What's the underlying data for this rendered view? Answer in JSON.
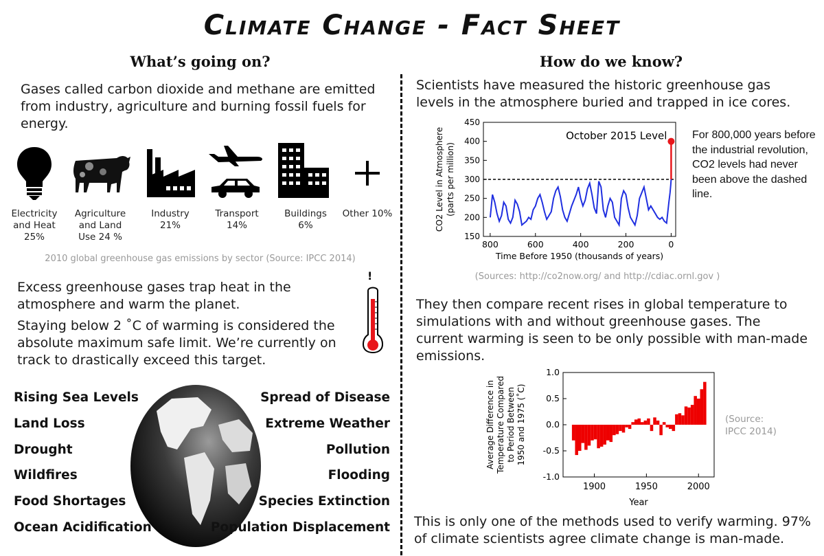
{
  "title": "Climate Change - Fact Sheet",
  "left": {
    "heading": "What’s going on?",
    "intro": "Gases called carbon dioxide and methane are emitted from industry, agriculture and burning fossil fuels for energy.",
    "sectors": [
      {
        "icon": "lightbulb-icon",
        "line1": "Electricity",
        "line2": "and Heat",
        "line3": "25%"
      },
      {
        "icon": "cow-icon",
        "line1": "Agriculture",
        "line2": "and Land",
        "line3": "Use 24 %"
      },
      {
        "icon": "factory-icon",
        "line1": "Industry",
        "line2": "21%",
        "line3": ""
      },
      {
        "icon": "plane-car-icon",
        "line1": "Transport",
        "line2": "14%",
        "line3": ""
      },
      {
        "icon": "buildings-icon",
        "line1": "Buildings",
        "line2": "6%",
        "line3": ""
      },
      {
        "icon": "plus-icon",
        "line1": "Other 10%",
        "line2": "",
        "line3": ""
      }
    ],
    "sectors_caption": "2010 global greenhouse gas emissions by sector (Source: IPCC 2014)",
    "para1": "Excess greenhouse gases trap heat in the atmosphere and warm the planet.",
    "para2": "Staying below 2 ˚C of warming is considered the absolute maximum safe limit. We’re currently on track to drastically exceed this target.",
    "thermometer_mark": "!",
    "impacts_left": [
      "Rising Sea Levels",
      "Land Loss",
      "Drought",
      "Wildfires",
      "Food Shortages",
      "Ocean Acidification"
    ],
    "impacts_right": [
      "Spread of Disease",
      "Extreme Weather",
      "Pollution",
      "Flooding",
      "Species Extinction",
      "Population Displacement"
    ]
  },
  "right": {
    "heading": "How do we know?",
    "intro": "Scientists have measured the historic greenhouse gas levels in the atmosphere buried and trapped in ice cores.",
    "co2_note": "For 800,000 years before the industrial revolution, CO2 levels had never been above the dashed line.",
    "co2_sources": "(Sources: http://co2now.org/ and http://cdiac.ornl.gov )",
    "para2": "They then compare recent rises in global temperature to simulations with and without greenhouse gases. The current warming is seen to be only possible with man-made emissions.",
    "temp_source": "(Source: IPCC 2014)",
    "closing": "This is only one of the methods used to verify warming. 97% of climate scientists agree climate change is man-made."
  },
  "colors": {
    "co2_line": "#1f2fe0",
    "co2_marker": "#e8161b",
    "temp_bars": "#ee0000"
  },
  "chart_data": [
    {
      "type": "line",
      "title": "",
      "annotation": "October 2015 Level",
      "xlabel": "Time Before 1950 (thousands of years)",
      "ylabel_line1": "CO2 Level in Atmosphere",
      "ylabel_line2": "(parts per million)",
      "xlim": [
        830,
        -20
      ],
      "ylim": [
        150,
        450
      ],
      "xticks": [
        800,
        600,
        400,
        200,
        0
      ],
      "yticks": [
        150,
        200,
        250,
        300,
        350,
        400,
        450
      ],
      "threshold": 300,
      "current_level": 400,
      "series": [
        {
          "x": [
            800,
            790,
            780,
            770,
            760,
            750,
            740,
            730,
            720,
            710,
            700,
            690,
            680,
            670,
            660,
            650,
            640,
            630,
            620,
            610,
            600,
            590,
            580,
            570,
            560,
            550,
            540,
            530,
            520,
            510,
            500,
            490,
            480,
            470,
            460,
            450,
            440,
            430,
            420,
            410,
            400,
            390,
            380,
            370,
            360,
            350,
            340,
            330,
            320,
            310,
            300,
            290,
            280,
            270,
            260,
            250,
            240,
            230,
            220,
            210,
            200,
            190,
            180,
            170,
            160,
            150,
            140,
            130,
            120,
            110,
            100,
            90,
            80,
            70,
            60,
            50,
            40,
            30,
            20,
            10,
            5,
            2,
            0
          ],
          "y": [
            200,
            260,
            240,
            210,
            190,
            205,
            240,
            230,
            195,
            185,
            200,
            245,
            235,
            215,
            180,
            185,
            190,
            200,
            195,
            220,
            230,
            250,
            260,
            240,
            215,
            195,
            205,
            215,
            250,
            270,
            280,
            255,
            220,
            200,
            190,
            210,
            230,
            245,
            260,
            280,
            250,
            230,
            245,
            275,
            290,
            260,
            225,
            210,
            295,
            280,
            220,
            200,
            230,
            250,
            240,
            200,
            190,
            180,
            250,
            270,
            260,
            225,
            200,
            190,
            180,
            205,
            250,
            265,
            280,
            250,
            220,
            230,
            220,
            210,
            200,
            195,
            200,
            190,
            185,
            240,
            265,
            285,
            300
          ]
        }
      ]
    },
    {
      "type": "bar",
      "title": "",
      "xlabel": "Year",
      "ylabel_line1": "Average Difference in",
      "ylabel_line2": "Temperature Compared",
      "ylabel_line3": "to Period Between",
      "ylabel_line4": "1950 and 1975 (˚C)",
      "xlim": [
        1870,
        2015
      ],
      "ylim": [
        -1.0,
        1.0
      ],
      "xticks": [
        1900,
        1950,
        2000
      ],
      "yticks": [
        -1.0,
        -0.5,
        0.0,
        0.5,
        1.0
      ],
      "x": [
        1880,
        1883,
        1886,
        1889,
        1892,
        1895,
        1898,
        1901,
        1904,
        1907,
        1910,
        1913,
        1916,
        1919,
        1922,
        1925,
        1928,
        1931,
        1934,
        1937,
        1940,
        1943,
        1946,
        1949,
        1952,
        1955,
        1958,
        1961,
        1964,
        1967,
        1970,
        1973,
        1976,
        1979,
        1982,
        1985,
        1988,
        1991,
        1994,
        1997,
        2000,
        2003,
        2006
      ],
      "values": [
        -0.3,
        -0.58,
        -0.5,
        -0.35,
        -0.48,
        -0.4,
        -0.3,
        -0.28,
        -0.45,
        -0.42,
        -0.38,
        -0.3,
        -0.33,
        -0.2,
        -0.18,
        -0.12,
        -0.15,
        -0.05,
        -0.08,
        0.05,
        0.1,
        0.12,
        0.05,
        0.08,
        0.12,
        -0.12,
        0.14,
        0.08,
        -0.2,
        0.05,
        -0.05,
        -0.08,
        -0.12,
        0.2,
        0.22,
        0.18,
        0.35,
        0.33,
        0.38,
        0.55,
        0.5,
        0.68,
        0.82
      ]
    }
  ]
}
